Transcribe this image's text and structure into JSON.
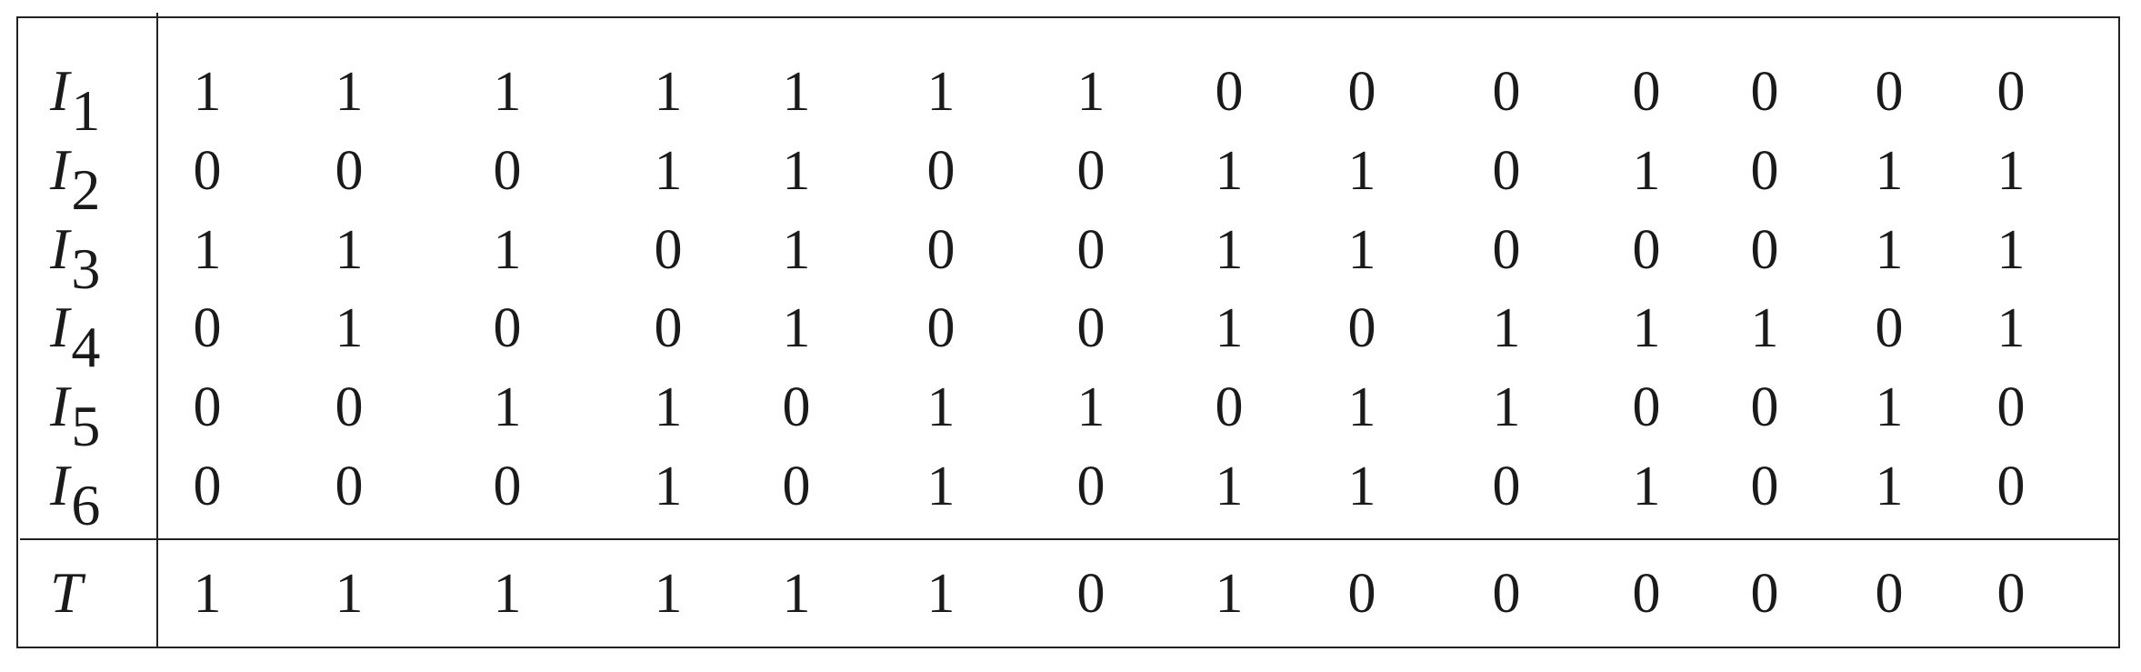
{
  "table": {
    "rows": [
      {
        "label": "I",
        "sub": "1",
        "values": [
          "1",
          "1",
          "1",
          "1",
          "1",
          "1",
          "1",
          "0",
          "0",
          "0",
          "0",
          "0",
          "0",
          "0"
        ]
      },
      {
        "label": "I",
        "sub": "2",
        "values": [
          "0",
          "0",
          "0",
          "1",
          "1",
          "0",
          "0",
          "1",
          "1",
          "0",
          "1",
          "0",
          "1",
          "1"
        ]
      },
      {
        "label": "I",
        "sub": "3",
        "values": [
          "1",
          "1",
          "1",
          "0",
          "1",
          "0",
          "0",
          "1",
          "1",
          "0",
          "0",
          "0",
          "1",
          "1"
        ]
      },
      {
        "label": "I",
        "sub": "4",
        "values": [
          "0",
          "1",
          "0",
          "0",
          "1",
          "0",
          "0",
          "1",
          "0",
          "1",
          "1",
          "1",
          "0",
          "1"
        ]
      },
      {
        "label": "I",
        "sub": "5",
        "values": [
          "0",
          "0",
          "1",
          "1",
          "0",
          "1",
          "1",
          "0",
          "1",
          "1",
          "0",
          "0",
          "1",
          "0"
        ]
      },
      {
        "label": "I",
        "sub": "6",
        "values": [
          "0",
          "0",
          "0",
          "1",
          "0",
          "1",
          "0",
          "1",
          "1",
          "0",
          "1",
          "0",
          "1",
          "0"
        ]
      }
    ],
    "target": {
      "label": "T",
      "values": [
        "1",
        "1",
        "1",
        "1",
        "1",
        "1",
        "0",
        "1",
        "0",
        "0",
        "0",
        "0",
        "0",
        "0"
      ]
    }
  }
}
